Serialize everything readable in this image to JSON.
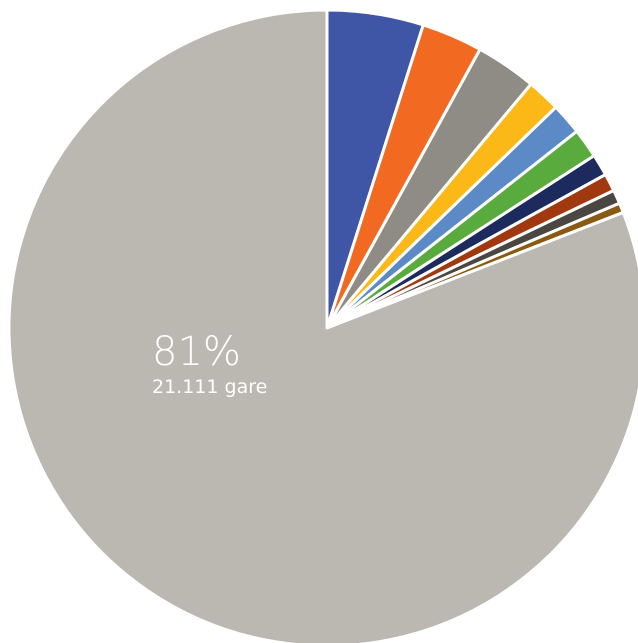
{
  "chart_data": {
    "type": "pie",
    "categories": [
      null,
      null,
      null,
      null,
      null,
      null,
      null,
      null,
      null,
      null,
      null
    ],
    "values": [
      4.9,
      3.1,
      3.1,
      1.7,
      1.6,
      1.5,
      1.1,
      0.9,
      0.7,
      0.5,
      81
    ],
    "value_labels": [
      null,
      null,
      null,
      null,
      null,
      null,
      null,
      null,
      null,
      null,
      "81%"
    ],
    "sublabels": [
      null,
      null,
      null,
      null,
      null,
      null,
      null,
      null,
      null,
      null,
      "21.111 gare"
    ],
    "colors": [
      "#3f56a6",
      "#f26a21",
      "#8e8c84",
      "#fbb817",
      "#5b8ac6",
      "#5aab3d",
      "#1c2a5e",
      "#a1380f",
      "#4a4642",
      "#8a5a12",
      "#bbb8b1"
    ]
  }
}
